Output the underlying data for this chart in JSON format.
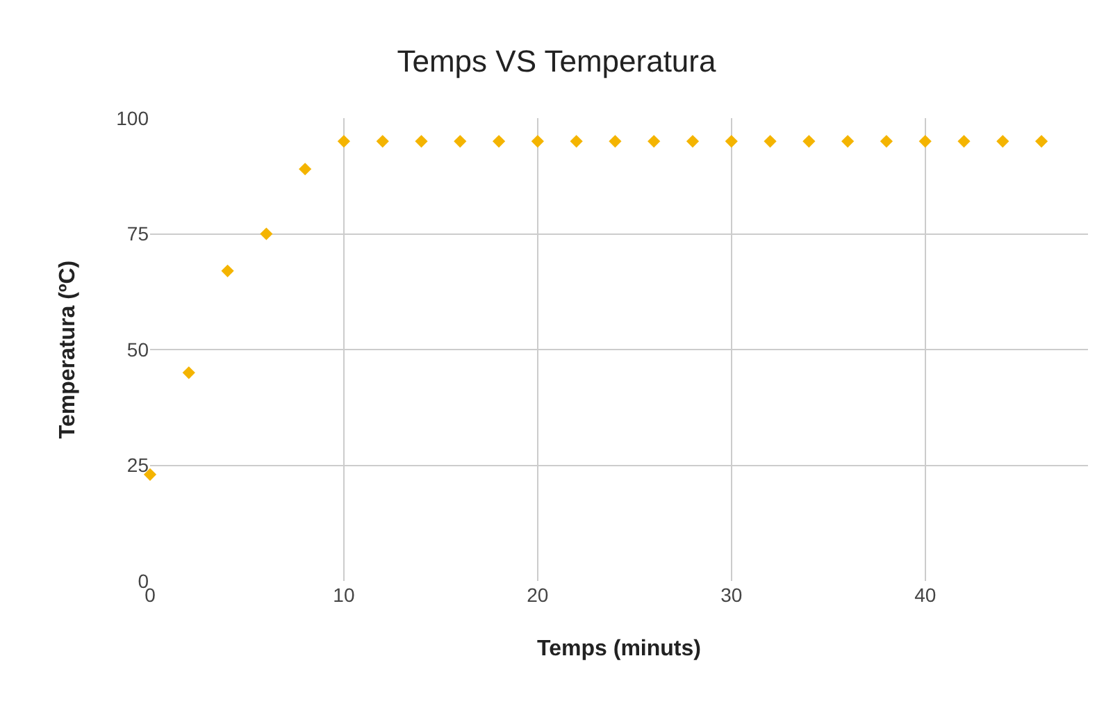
{
  "chart_data": {
    "type": "scatter",
    "title": "Temps VS Temperatura",
    "xlabel": "Temps (minuts)",
    "ylabel": "Temperatura (ºC)",
    "x": [
      0,
      2,
      4,
      6,
      8,
      10,
      12,
      14,
      16,
      18,
      20,
      22,
      24,
      26,
      28,
      30,
      32,
      34,
      36,
      38,
      40,
      42,
      44,
      46
    ],
    "series": [
      {
        "color": "#f4b400",
        "values": [
          23,
          45,
          67,
          75,
          89,
          95,
          95,
          95,
          95,
          95,
          95,
          95,
          95,
          95,
          95,
          95,
          95,
          95,
          95,
          95,
          95,
          95,
          95,
          95
        ]
      }
    ],
    "xlim": [
      0,
      48.4
    ],
    "xticks": [
      0,
      10,
      20,
      30,
      40
    ],
    "ylim": [
      0,
      100
    ],
    "yticks": [
      0,
      25,
      50,
      75,
      100
    ],
    "grid": true,
    "marker": "diamond"
  }
}
